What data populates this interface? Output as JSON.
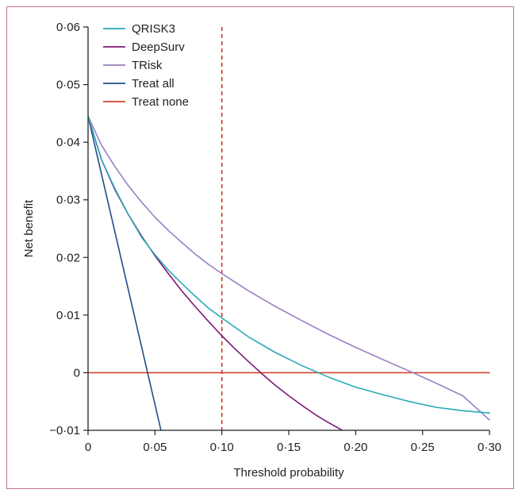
{
  "chart_data": {
    "type": "line",
    "title": "",
    "xlabel": "Threshold probability",
    "ylabel": "Net benefit",
    "xlim": [
      0,
      0.3
    ],
    "ylim": [
      -0.01,
      0.06
    ],
    "x_ticks": [
      0,
      0.05,
      0.1,
      0.15,
      0.2,
      0.25,
      0.3
    ],
    "x_tick_labels": [
      "0",
      "0·05",
      "0·10",
      "0·15",
      "0·20",
      "0·25",
      "0·30"
    ],
    "y_ticks": [
      -0.01,
      0,
      0.01,
      0.02,
      0.03,
      0.04,
      0.05,
      0.06
    ],
    "y_tick_labels": [
      "−0·01",
      "0",
      "0·01",
      "0·02",
      "0·03",
      "0·04",
      "0·05",
      "0·06"
    ],
    "grid": false,
    "legend_position": "top-left",
    "reference_line": {
      "x": 0.1,
      "color": "#c0392b",
      "style": "dashed"
    },
    "series": [
      {
        "name": "QRISK3",
        "color": "#2aa9b5",
        "x": [
          0,
          0.01,
          0.02,
          0.03,
          0.04,
          0.05,
          0.06,
          0.07,
          0.08,
          0.09,
          0.1,
          0.12,
          0.14,
          0.16,
          0.18,
          0.2,
          0.22,
          0.24,
          0.26,
          0.28,
          0.3
        ],
        "y": [
          0.0445,
          0.037,
          0.032,
          0.0275,
          0.0235,
          0.0205,
          0.0178,
          0.0155,
          0.0133,
          0.0112,
          0.0095,
          0.0062,
          0.0035,
          0.0012,
          -0.0008,
          -0.0025,
          -0.0038,
          -0.005,
          -0.006,
          -0.0066,
          -0.007
        ]
      },
      {
        "name": "DeepSurv",
        "color": "#7b1a78",
        "x": [
          0,
          0.01,
          0.02,
          0.03,
          0.04,
          0.05,
          0.06,
          0.07,
          0.08,
          0.09,
          0.1,
          0.11,
          0.12,
          0.13,
          0.14,
          0.15,
          0.16,
          0.17,
          0.18,
          0.19
        ],
        "y": [
          0.0445,
          0.037,
          0.0318,
          0.0275,
          0.0237,
          0.0203,
          0.0172,
          0.0142,
          0.0115,
          0.0089,
          0.0064,
          0.0041,
          0.0019,
          -0.0002,
          -0.0022,
          -0.004,
          -0.0057,
          -0.0073,
          -0.0087,
          -0.01
        ]
      },
      {
        "name": "TRisk",
        "color": "#9b7fc2",
        "x": [
          0,
          0.01,
          0.02,
          0.03,
          0.04,
          0.05,
          0.06,
          0.07,
          0.08,
          0.09,
          0.1,
          0.12,
          0.14,
          0.16,
          0.18,
          0.2,
          0.22,
          0.24,
          0.26,
          0.28,
          0.3
        ],
        "y": [
          0.0445,
          0.0395,
          0.0358,
          0.0325,
          0.0296,
          0.027,
          0.0247,
          0.0226,
          0.0206,
          0.0188,
          0.0172,
          0.0142,
          0.0115,
          0.009,
          0.0066,
          0.0044,
          0.0023,
          0.0003,
          -0.0018,
          -0.004,
          -0.0082
        ]
      },
      {
        "name": "Treat all",
        "color": "#1f4e89",
        "x": [
          0,
          0.0545
        ],
        "y": [
          0.0445,
          -0.01
        ]
      },
      {
        "name": "Treat none",
        "color": "#d2462f",
        "x": [
          0,
          0.3
        ],
        "y": [
          0,
          0
        ]
      }
    ]
  }
}
